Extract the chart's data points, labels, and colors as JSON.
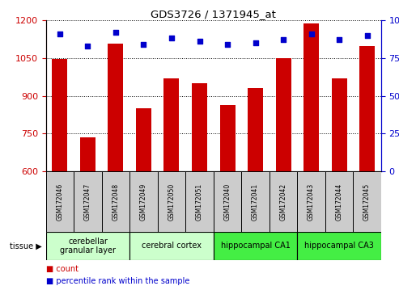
{
  "title": "GDS3726 / 1371945_at",
  "samples": [
    "GSM172046",
    "GSM172047",
    "GSM172048",
    "GSM172049",
    "GSM172050",
    "GSM172051",
    "GSM172040",
    "GSM172041",
    "GSM172042",
    "GSM172043",
    "GSM172044",
    "GSM172045"
  ],
  "counts": [
    1047,
    737,
    1108,
    851,
    970,
    950,
    862,
    932,
    1049,
    1185,
    969,
    1097
  ],
  "percentiles": [
    91,
    83,
    92,
    84,
    88,
    86,
    84,
    85,
    87,
    91,
    87,
    90
  ],
  "ylim_left": [
    600,
    1200
  ],
  "ylim_right": [
    0,
    100
  ],
  "yticks_left": [
    600,
    750,
    900,
    1050,
    1200
  ],
  "yticks_right": [
    0,
    25,
    50,
    75,
    100
  ],
  "bar_color": "#cc0000",
  "dot_color": "#0000cc",
  "tissue_groups": [
    {
      "label": "cerebellar\ngranular layer",
      "start": 0,
      "end": 3,
      "color": "#ccffcc"
    },
    {
      "label": "cerebral cortex",
      "start": 3,
      "end": 6,
      "color": "#ccffcc"
    },
    {
      "label": "hippocampal CA1",
      "start": 6,
      "end": 9,
      "color": "#44ee44"
    },
    {
      "label": "hippocampal CA3",
      "start": 9,
      "end": 12,
      "color": "#44ee44"
    }
  ],
  "left_axis_color": "#cc0000",
  "right_axis_color": "#0000cc",
  "sample_box_color": "#cccccc",
  "legend_count_color": "#cc0000",
  "legend_percentile_color": "#0000cc",
  "bar_width": 0.55
}
